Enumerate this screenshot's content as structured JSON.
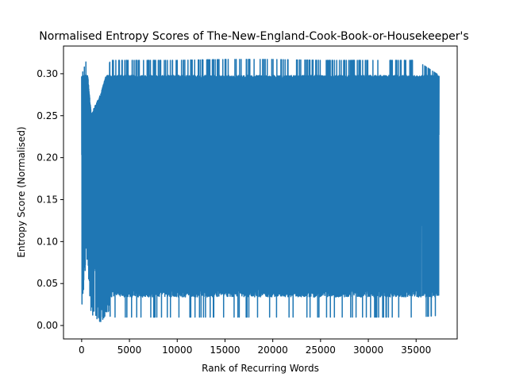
{
  "chart_data": {
    "type": "line",
    "title": "Normalised Entropy Scores of The-New-England-Cook-Book-or-Housekeeper's",
    "xlabel": "Rank of Recurring Words",
    "ylabel": "Entropy Score (Normalised)",
    "xlim": [
      -1900,
      39300
    ],
    "ylim": [
      -0.016,
      0.333
    ],
    "xticks": [
      0,
      5000,
      10000,
      15000,
      20000,
      25000,
      30000,
      35000
    ],
    "xtick_labels": [
      "0",
      "5000",
      "10000",
      "15000",
      "20000",
      "25000",
      "30000",
      "35000"
    ],
    "yticks": [
      0.0,
      0.05,
      0.1,
      0.15,
      0.2,
      0.25,
      0.3
    ],
    "ytick_labels": [
      "0.00",
      "0.05",
      "0.10",
      "0.15",
      "0.20",
      "0.25",
      "0.30"
    ],
    "grid": false,
    "legend": "none",
    "series": [
      {
        "color": "#1f77b4",
        "x_range": [
          0,
          37400
        ],
        "band": [
          {
            "x": 0,
            "low": 0.002,
            "high": 0.298
          },
          {
            "x": 500,
            "low": 0.086,
            "high": 0.316
          },
          {
            "x": 1000,
            "low": 0.011,
            "high": 0.252
          },
          {
            "x": 2000,
            "low": 0.004,
            "high": 0.276
          },
          {
            "x": 3000,
            "low": 0.01,
            "high": 0.316
          },
          {
            "x": 5000,
            "low": 0.01,
            "high": 0.316
          },
          {
            "x": 10000,
            "low": 0.01,
            "high": 0.316
          },
          {
            "x": 15000,
            "low": 0.01,
            "high": 0.317
          },
          {
            "x": 20000,
            "low": 0.01,
            "high": 0.317
          },
          {
            "x": 25000,
            "low": 0.01,
            "high": 0.316
          },
          {
            "x": 30000,
            "low": 0.01,
            "high": 0.316
          },
          {
            "x": 35000,
            "low": 0.01,
            "high": 0.316
          },
          {
            "x": 37400,
            "low": 0.012,
            "high": 0.298
          }
        ],
        "typical_max": 0.298,
        "dense_min": 0.034,
        "extreme_max": 0.317,
        "extreme_min": 0.01
      }
    ]
  }
}
